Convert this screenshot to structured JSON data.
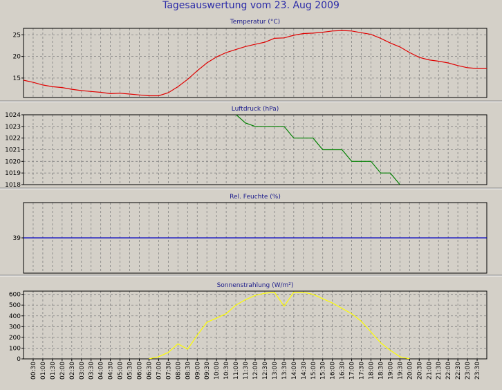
{
  "page": {
    "title": "Tagesauswertung vom 23. Aug 2009"
  },
  "colors": {
    "background": "#d4d0c8",
    "title": "#2a2aa8",
    "panel_title": "#1a1a8a",
    "grid": "#808080",
    "temperature": "#e00000",
    "pressure": "#008000",
    "humidity": "#0000c0",
    "radiation": "#ffff00"
  },
  "chart_data": [
    {
      "type": "line",
      "title": "Temperatur (°C)",
      "x_ticks": [
        "00:30",
        "01:00",
        "01:30",
        "02:00",
        "02:30",
        "03:00",
        "03:30",
        "04:00",
        "04:30",
        "05:00",
        "05:30",
        "06:00",
        "06:30",
        "07:00",
        "07:30",
        "08:00",
        "08:30",
        "09:00",
        "09:30",
        "10:00",
        "10:30",
        "11:00",
        "11:30",
        "12:00",
        "12:30",
        "13:00",
        "13:30",
        "14:00",
        "14:30",
        "15:00",
        "15:30",
        "16:00",
        "16:30",
        "17:00",
        "17:30",
        "18:00",
        "18:30",
        "19:00",
        "19:30",
        "20:00",
        "20:30",
        "21:00",
        "21:30",
        "22:00",
        "22:30",
        "23:00",
        "23:30"
      ],
      "y_ticks": [
        15,
        20,
        25
      ],
      "ylim": [
        10.5,
        26.5
      ],
      "grid": true,
      "series": [
        {
          "color": "#e00000",
          "x": [
            "00:00",
            "00:30",
            "01:00",
            "01:30",
            "02:00",
            "02:30",
            "03:00",
            "03:30",
            "04:00",
            "04:30",
            "05:00",
            "05:30",
            "06:00",
            "06:30",
            "07:00",
            "07:30",
            "08:00",
            "08:30",
            "09:00",
            "09:30",
            "10:00",
            "10:30",
            "11:00",
            "11:30",
            "12:00",
            "12:30",
            "13:00",
            "13:30",
            "14:00",
            "14:30",
            "15:00",
            "15:30",
            "16:00",
            "16:30",
            "17:00",
            "17:30",
            "18:00",
            "18:30",
            "19:00",
            "19:30",
            "20:00",
            "20:30",
            "21:00",
            "21:30",
            "22:00",
            "22:30",
            "23:00",
            "23:30",
            "00:00"
          ],
          "values": [
            14.5,
            14.0,
            13.4,
            13.0,
            12.8,
            12.4,
            12.1,
            11.9,
            11.7,
            11.4,
            11.5,
            11.3,
            11.1,
            10.9,
            10.9,
            11.6,
            13.0,
            14.7,
            16.7,
            18.5,
            19.9,
            20.9,
            21.6,
            22.3,
            22.8,
            23.3,
            24.2,
            24.3,
            24.9,
            25.3,
            25.4,
            25.6,
            25.9,
            26.0,
            25.9,
            25.5,
            25.1,
            24.2,
            23.1,
            22.2,
            20.9,
            19.8,
            19.2,
            18.9,
            18.5,
            17.9,
            17.4,
            17.2,
            17.2
          ]
        }
      ]
    },
    {
      "type": "line",
      "title": "Luftdruck (hPa)",
      "x_ticks": [
        "00:30",
        "01:00",
        "01:30",
        "02:00",
        "02:30",
        "03:00",
        "03:30",
        "04:00",
        "04:30",
        "05:00",
        "05:30",
        "06:00",
        "06:30",
        "07:00",
        "07:30",
        "08:00",
        "08:30",
        "09:00",
        "09:30",
        "10:00",
        "10:30",
        "11:00",
        "11:30",
        "12:00",
        "12:30",
        "13:00",
        "13:30",
        "14:00",
        "14:30",
        "15:00",
        "15:30",
        "16:00",
        "16:30",
        "17:00",
        "17:30",
        "18:00",
        "18:30",
        "19:00",
        "19:30",
        "20:00",
        "20:30",
        "21:00",
        "21:30",
        "22:00",
        "22:30",
        "23:00",
        "23:30"
      ],
      "y_ticks": [
        1018,
        1019,
        1020,
        1021,
        1022,
        1023,
        1024
      ],
      "ylim": [
        1018,
        1024
      ],
      "grid": true,
      "series": [
        {
          "color": "#008000",
          "x": [
            "10:45",
            "11:30",
            "12:00",
            "12:30",
            "13:00",
            "13:30",
            "14:00",
            "14:30",
            "15:00",
            "15:30",
            "16:00",
            "16:30",
            "17:00",
            "17:30",
            "18:00",
            "18:30",
            "19:00",
            "19:15",
            "19:30"
          ],
          "values": [
            1024.4,
            1023.3,
            1023,
            1023,
            1023,
            1023,
            1022,
            1022,
            1022,
            1021,
            1021,
            1021,
            1020,
            1020,
            1020,
            1019,
            1019,
            1018.5,
            1018
          ]
        }
      ]
    },
    {
      "type": "line",
      "title": "Rel. Feuchte (%)",
      "x_ticks": [
        "00:30",
        "01:00",
        "01:30",
        "02:00",
        "02:30",
        "03:00",
        "03:30",
        "04:00",
        "04:30",
        "05:00",
        "05:30",
        "06:00",
        "06:30",
        "07:00",
        "07:30",
        "08:00",
        "08:30",
        "09:00",
        "09:30",
        "10:00",
        "10:30",
        "11:00",
        "11:30",
        "12:00",
        "12:30",
        "13:00",
        "13:30",
        "14:00",
        "14:30",
        "15:00",
        "15:30",
        "16:00",
        "16:30",
        "17:00",
        "17:30",
        "18:00",
        "18:30",
        "19:00",
        "19:30",
        "20:00",
        "20:30",
        "21:00",
        "21:30",
        "22:00",
        "22:30",
        "23:00",
        "23:30"
      ],
      "y_ticks": [
        39
      ],
      "ylim": [
        38,
        40
      ],
      "grid": true,
      "series": [
        {
          "color": "#0000c0",
          "x": [
            "00:00",
            "00:00"
          ],
          "values": [
            39,
            39
          ],
          "full_width": true
        }
      ]
    },
    {
      "type": "line",
      "title": "Sonnenstrahlung (W/m²)",
      "x_ticks": [
        "00:30",
        "01:00",
        "01:30",
        "02:00",
        "02:30",
        "03:00",
        "03:30",
        "04:00",
        "04:30",
        "05:00",
        "05:30",
        "06:00",
        "06:30",
        "07:00",
        "07:30",
        "08:00",
        "08:30",
        "09:00",
        "09:30",
        "10:00",
        "10:30",
        "11:00",
        "11:30",
        "12:00",
        "12:30",
        "13:00",
        "13:30",
        "14:00",
        "14:30",
        "15:00",
        "15:30",
        "16:00",
        "16:30",
        "17:00",
        "17:30",
        "18:00",
        "18:30",
        "19:00",
        "19:30",
        "20:00",
        "20:30",
        "21:00",
        "21:30",
        "22:00",
        "22:30",
        "23:00",
        "23:30"
      ],
      "y_ticks": [
        0,
        100,
        200,
        300,
        400,
        500,
        600
      ],
      "ylim": [
        0,
        630
      ],
      "grid": true,
      "show_x_labels": true,
      "series": [
        {
          "color": "#ffff00",
          "x": [
            "06:30",
            "07:00",
            "07:30",
            "08:00",
            "08:30",
            "09:00",
            "09:30",
            "10:00",
            "10:30",
            "11:00",
            "11:30",
            "12:00",
            "12:30",
            "13:00",
            "13:30",
            "14:00",
            "14:30",
            "15:00",
            "15:30",
            "16:00",
            "16:30",
            "17:00",
            "17:30",
            "18:00",
            "18:30",
            "19:00",
            "19:30",
            "20:00"
          ],
          "values": [
            0,
            20,
            60,
            140,
            90,
            220,
            340,
            380,
            420,
            500,
            550,
            590,
            610,
            620,
            490,
            620,
            620,
            600,
            560,
            520,
            470,
            420,
            350,
            250,
            150,
            80,
            20,
            0
          ]
        }
      ]
    }
  ]
}
